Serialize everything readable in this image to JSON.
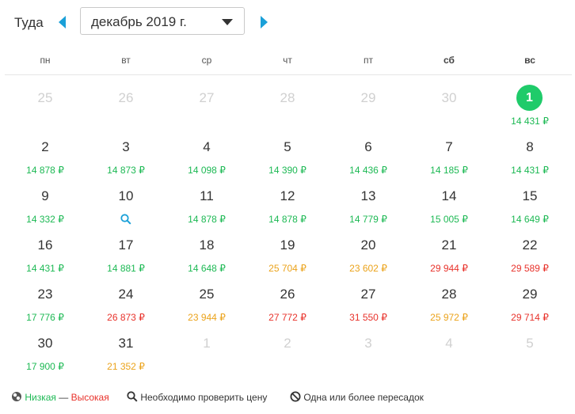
{
  "header": {
    "direction_label": "Туда",
    "month_value": "декабрь 2019 г."
  },
  "weekdays": [
    "пн",
    "вт",
    "ср",
    "чт",
    "пт",
    "сб",
    "вс"
  ],
  "weeks": [
    [
      {
        "day": "25",
        "price": "",
        "muted": true
      },
      {
        "day": "26",
        "price": "",
        "muted": true
      },
      {
        "day": "27",
        "price": "",
        "muted": true
      },
      {
        "day": "28",
        "price": "",
        "muted": true
      },
      {
        "day": "29",
        "price": "",
        "muted": true
      },
      {
        "day": "30",
        "price": "",
        "muted": true
      },
      {
        "day": "1",
        "price": "14 431 ₽",
        "level": "green",
        "selected": true
      }
    ],
    [
      {
        "day": "2",
        "price": "14 878 ₽",
        "level": "green"
      },
      {
        "day": "3",
        "price": "14 873 ₽",
        "level": "green"
      },
      {
        "day": "4",
        "price": "14 098 ₽",
        "level": "green"
      },
      {
        "day": "5",
        "price": "14 390 ₽",
        "level": "green"
      },
      {
        "day": "6",
        "price": "14 436 ₽",
        "level": "green"
      },
      {
        "day": "7",
        "price": "14 185 ₽",
        "level": "green"
      },
      {
        "day": "8",
        "price": "14 431 ₽",
        "level": "green"
      }
    ],
    [
      {
        "day": "9",
        "price": "14 332 ₽",
        "level": "green"
      },
      {
        "day": "10",
        "price": "",
        "search": true
      },
      {
        "day": "11",
        "price": "14 878 ₽",
        "level": "green"
      },
      {
        "day": "12",
        "price": "14 878 ₽",
        "level": "green"
      },
      {
        "day": "13",
        "price": "14 779 ₽",
        "level": "green"
      },
      {
        "day": "14",
        "price": "15 005 ₽",
        "level": "green"
      },
      {
        "day": "15",
        "price": "14 649 ₽",
        "level": "green"
      }
    ],
    [
      {
        "day": "16",
        "price": "14 431 ₽",
        "level": "green"
      },
      {
        "day": "17",
        "price": "14 881 ₽",
        "level": "green"
      },
      {
        "day": "18",
        "price": "14 648 ₽",
        "level": "green"
      },
      {
        "day": "19",
        "price": "25 704 ₽",
        "level": "orange"
      },
      {
        "day": "20",
        "price": "23 602 ₽",
        "level": "orange"
      },
      {
        "day": "21",
        "price": "29 944 ₽",
        "level": "red"
      },
      {
        "day": "22",
        "price": "29 589 ₽",
        "level": "red"
      }
    ],
    [
      {
        "day": "23",
        "price": "17 776 ₽",
        "level": "green"
      },
      {
        "day": "24",
        "price": "26 873 ₽",
        "level": "red"
      },
      {
        "day": "25",
        "price": "23 944 ₽",
        "level": "orange"
      },
      {
        "day": "26",
        "price": "27 772 ₽",
        "level": "red"
      },
      {
        "day": "27",
        "price": "31 550 ₽",
        "level": "red"
      },
      {
        "day": "28",
        "price": "25 972 ₽",
        "level": "orange"
      },
      {
        "day": "29",
        "price": "29 714 ₽",
        "level": "red"
      }
    ],
    [
      {
        "day": "30",
        "price": "17 900 ₽",
        "level": "green"
      },
      {
        "day": "31",
        "price": "21 352 ₽",
        "level": "orange"
      },
      {
        "day": "1",
        "price": "",
        "muted": true
      },
      {
        "day": "2",
        "price": "",
        "muted": true
      },
      {
        "day": "3",
        "price": "",
        "muted": true
      },
      {
        "day": "4",
        "price": "",
        "muted": true
      },
      {
        "day": "5",
        "price": "",
        "muted": true
      }
    ]
  ],
  "legend": {
    "low": "Низкая",
    "dash": " — ",
    "high": "Высокая",
    "check_price": "Необходимо проверить цену",
    "transfers": "Одна или более пересадок"
  },
  "colors": {
    "accent": "#1aa0d8",
    "selected": "#1fcb6a",
    "low": "#1db954",
    "mid": "#eba31b",
    "high": "#e8322b"
  },
  "icons": [
    "arrow-left-icon",
    "arrow-right-icon",
    "chevron-down-icon",
    "search-icon",
    "price-level-icon",
    "no-entry-icon"
  ]
}
